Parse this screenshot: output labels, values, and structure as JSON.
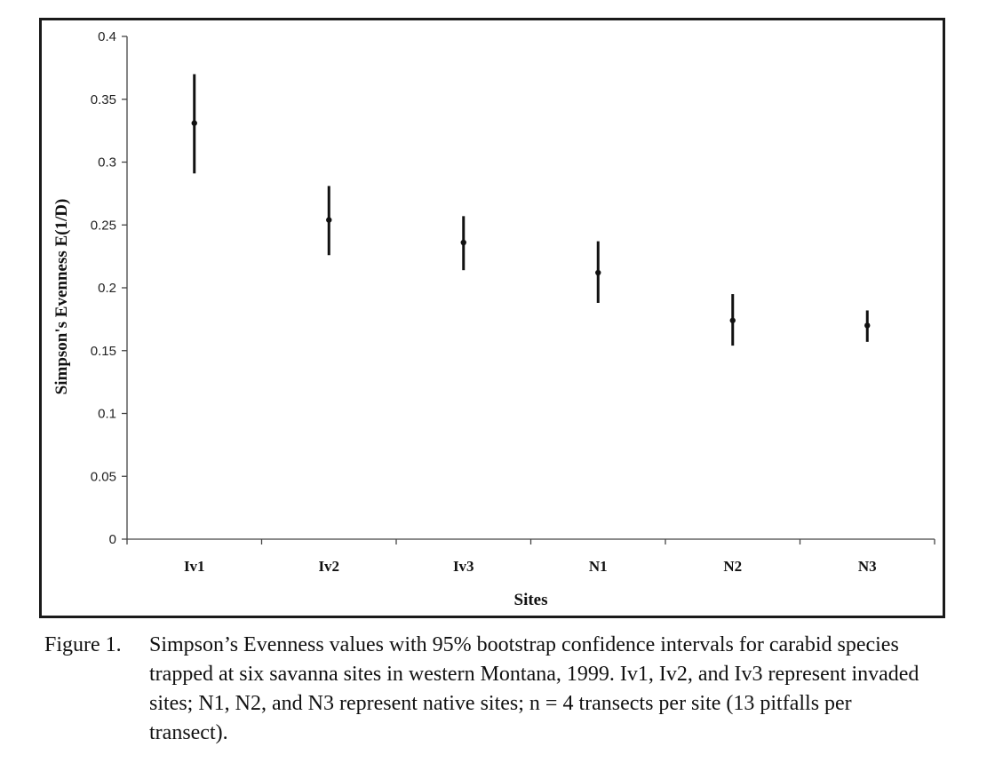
{
  "chart_data": {
    "type": "scatter",
    "categories": [
      "Iv1",
      "Iv2",
      "Iv3",
      "N1",
      "N2",
      "N3"
    ],
    "values": [
      0.331,
      0.254,
      0.236,
      0.212,
      0.174,
      0.17
    ],
    "error_low": [
      0.291,
      0.226,
      0.214,
      0.188,
      0.154,
      0.157
    ],
    "error_high": [
      0.37,
      0.281,
      0.257,
      0.237,
      0.195,
      0.182
    ],
    "ylim": [
      0,
      0.4
    ],
    "yticks": [
      "0",
      "0.05",
      "0.1",
      "0.15",
      "0.2",
      "0.25",
      "0.3",
      "0.35",
      "0.4"
    ],
    "xlabel": "Sites",
    "ylabel": "Simpson's Evenness E(1/D)",
    "grid": false,
    "legend": "none"
  },
  "caption": {
    "label": "Figure 1.",
    "text": "Simpson’s Evenness values with 95% bootstrap confidence intervals for carabid species trapped at six savanna sites in western Montana, 1999. Iv1, Iv2, and Iv3 represent invaded sites; N1, N2, and N3 represent native sites; n = 4 transects per site (13 pitfalls per transect)."
  }
}
